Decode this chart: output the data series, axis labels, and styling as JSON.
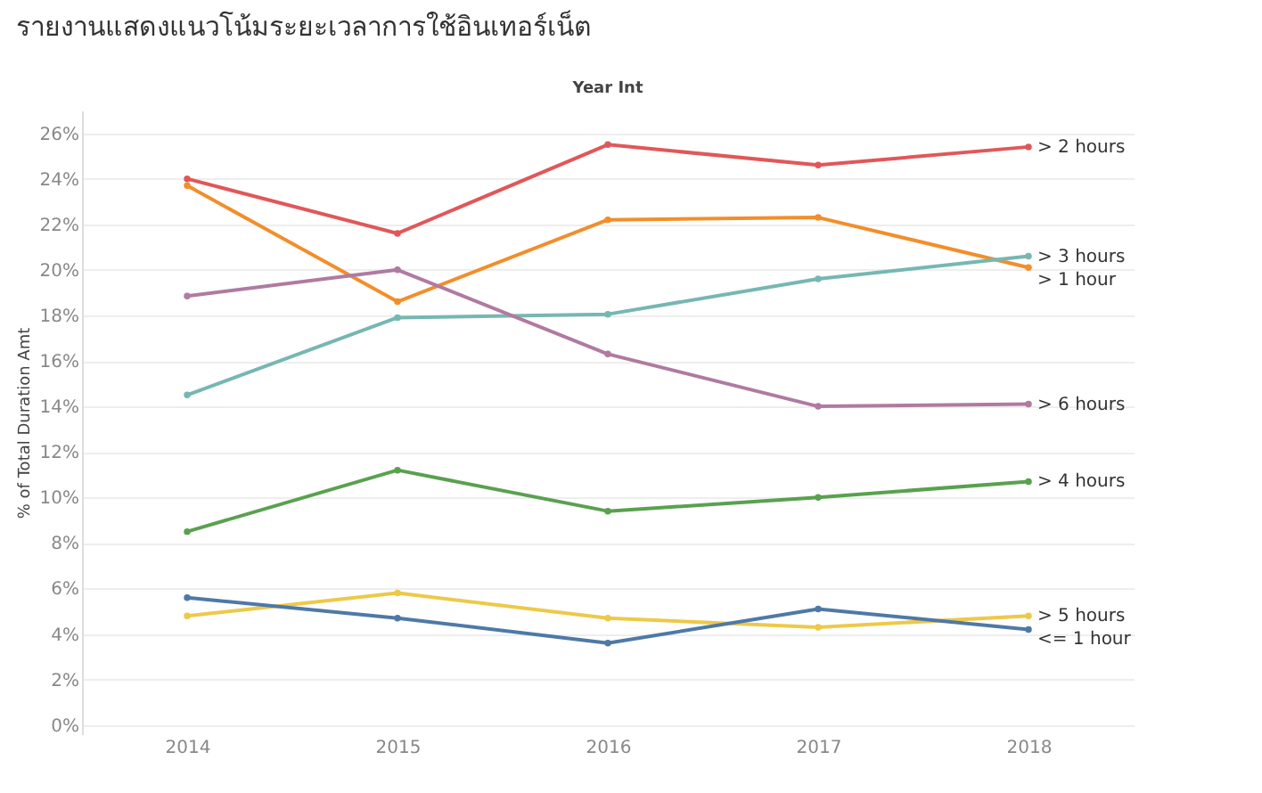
{
  "chart_data": {
    "type": "line",
    "title": "รายงานแสดงแนวโน้มระยะเวลาการใช้อินเทอร์เน็ต",
    "xlabel": "Year Int",
    "ylabel": "% of Total Duration Amt",
    "categories": [
      "2014",
      "2015",
      "2016",
      "2017",
      "2018"
    ],
    "series": [
      {
        "name": "> 2 hours",
        "color": "#e15759",
        "values": [
          24.0,
          21.6,
          25.5,
          24.6,
          25.4
        ]
      },
      {
        "name": "> 1 hour",
        "color": "#f28e2b",
        "values": [
          23.7,
          18.6,
          22.2,
          22.3,
          20.1
        ]
      },
      {
        "name": "> 3 hours",
        "color": "#76b7b2",
        "values": [
          14.5,
          17.9,
          18.05,
          19.6,
          20.6
        ]
      },
      {
        "name": "> 6 hours",
        "color": "#b07aa1",
        "values": [
          18.85,
          20.0,
          16.3,
          14.0,
          14.1
        ]
      },
      {
        "name": "> 4 hours",
        "color": "#59a14f",
        "values": [
          8.5,
          11.2,
          9.4,
          10.0,
          10.7
        ]
      },
      {
        "name": "> 5 hours",
        "color": "#edc948",
        "values": [
          4.8,
          5.8,
          4.7,
          4.3,
          4.8
        ]
      },
      {
        "name": "<= 1 hour",
        "color": "#4e79a7",
        "values": [
          5.6,
          4.7,
          3.6,
          5.1,
          4.2
        ]
      }
    ],
    "ylim": [
      -0.4,
      27
    ],
    "yticks": [
      {
        "value": 0,
        "label": "0%"
      },
      {
        "value": 2,
        "label": "2%"
      },
      {
        "value": 4,
        "label": "4%"
      },
      {
        "value": 6,
        "label": "6%"
      },
      {
        "value": 8,
        "label": "8%"
      },
      {
        "value": 10,
        "label": "10%"
      },
      {
        "value": 12,
        "label": "12%"
      },
      {
        "value": 14,
        "label": "14%"
      },
      {
        "value": 16,
        "label": "16%"
      },
      {
        "value": 18,
        "label": "18%"
      },
      {
        "value": 20,
        "label": "20%"
      },
      {
        "value": 22,
        "label": "22%"
      },
      {
        "value": 24,
        "label": "24%"
      },
      {
        "value": 26,
        "label": "26%"
      }
    ],
    "grid": "y",
    "legend": false,
    "marker": "circle",
    "line_style": "solid"
  }
}
